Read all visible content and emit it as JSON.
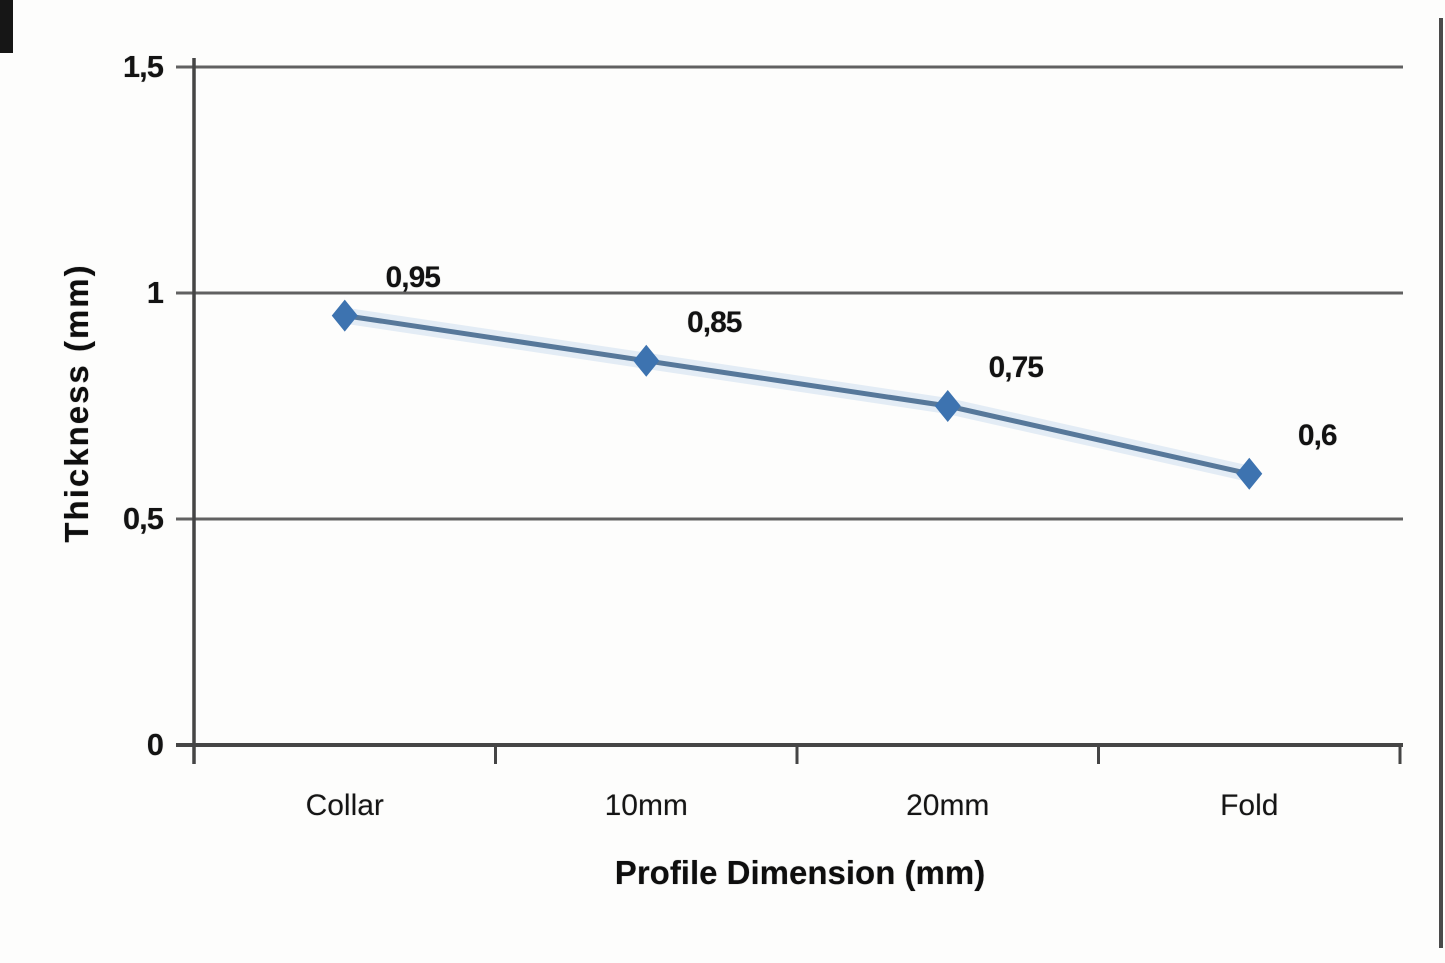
{
  "figure": {
    "background": "#fdfdfc",
    "artifacts": {
      "corner_bar_color": "#161616",
      "right_edge_bar_color": "#4a4a4a"
    }
  },
  "chart_data": {
    "type": "line",
    "title": "",
    "categories": [
      "Collar",
      "10mm",
      "20mm",
      "Fold"
    ],
    "series": [
      {
        "name": "Thickness",
        "values": [
          0.95,
          0.85,
          0.75,
          0.6
        ]
      }
    ],
    "data_labels": [
      "0,95",
      "0,85",
      "0,75",
      "0,6"
    ],
    "xlabel": "Profile Dimension (mm)",
    "ylabel": "Thickness (mm)",
    "ylim": [
      0,
      1.5
    ],
    "yticks": [
      {
        "value": 0,
        "label": "0"
      },
      {
        "value": 0.5,
        "label": "0,5"
      },
      {
        "value": 1,
        "label": "1"
      },
      {
        "value": 1.5,
        "label": "1,5"
      }
    ],
    "grid": true,
    "legend": "none",
    "marker": "diamond",
    "decimal_separator": ",",
    "colors": {
      "line": "#57789a",
      "line_halo": "#c9dcee",
      "marker": "#3d73b0",
      "grid": "#616161",
      "axis": "#454545",
      "text": "#131313"
    }
  }
}
